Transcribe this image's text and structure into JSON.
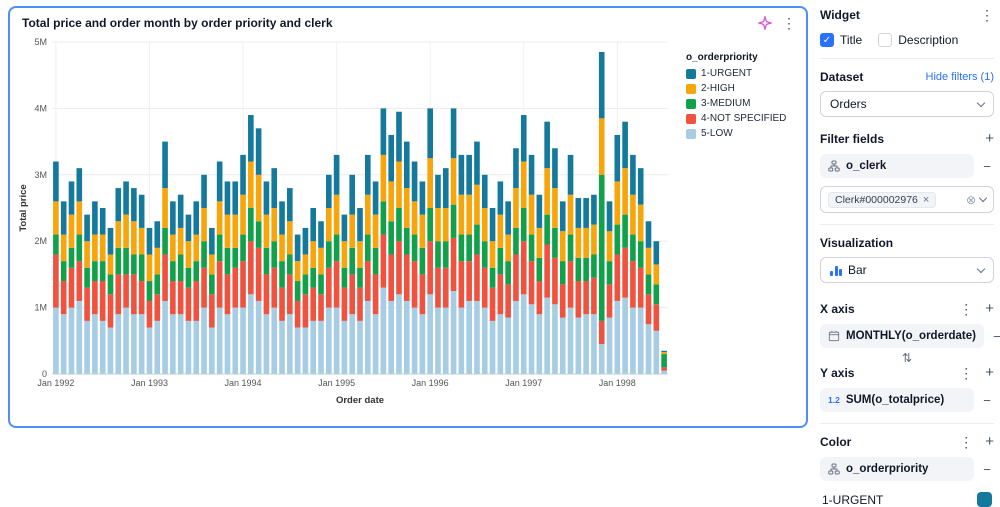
{
  "card": {
    "title": "Total price and order month by order priority and clerk"
  },
  "chart_data": {
    "type": "bar",
    "stacked": true,
    "title": "Total price and order month by order priority and clerk",
    "xlabel": "Order date",
    "ylabel": "Total price",
    "value_unit": "millions",
    "ylim": [
      0,
      5
    ],
    "y_ticks": [
      "0",
      "1M",
      "2M",
      "3M",
      "4M",
      "5M"
    ],
    "x_ticks": [
      "Jan 1992",
      "Jan 1993",
      "Jan 1994",
      "Jan 1995",
      "Jan 1996",
      "Jan 1997",
      "Jan 1998"
    ],
    "legend_title": "o_orderpriority",
    "legend_position": "top-right",
    "grid": true,
    "categories": [
      "1992-01",
      "1992-02",
      "1992-03",
      "1992-04",
      "1992-05",
      "1992-06",
      "1992-07",
      "1992-08",
      "1992-09",
      "1992-10",
      "1992-11",
      "1992-12",
      "1993-01",
      "1993-02",
      "1993-03",
      "1993-04",
      "1993-05",
      "1993-06",
      "1993-07",
      "1993-08",
      "1993-09",
      "1993-10",
      "1993-11",
      "1993-12",
      "1994-01",
      "1994-02",
      "1994-03",
      "1994-04",
      "1994-05",
      "1994-06",
      "1994-07",
      "1994-08",
      "1994-09",
      "1994-10",
      "1994-11",
      "1994-12",
      "1995-01",
      "1995-02",
      "1995-03",
      "1995-04",
      "1995-05",
      "1995-06",
      "1995-07",
      "1995-08",
      "1995-09",
      "1995-10",
      "1995-11",
      "1995-12",
      "1996-01",
      "1996-02",
      "1996-03",
      "1996-04",
      "1996-05",
      "1996-06",
      "1996-07",
      "1996-08",
      "1996-09",
      "1996-10",
      "1996-11",
      "1996-12",
      "1997-01",
      "1997-02",
      "1997-03",
      "1997-04",
      "1997-05",
      "1997-06",
      "1997-07",
      "1997-08",
      "1997-09",
      "1997-10",
      "1997-11",
      "1997-12",
      "1998-01",
      "1998-02",
      "1998-03",
      "1998-04",
      "1998-05",
      "1998-06",
      "1998-07"
    ],
    "series": [
      {
        "name": "1-URGENT",
        "color": "#15799c",
        "values": [
          0.6,
          0.5,
          0.5,
          0.5,
          0.4,
          0.5,
          0.4,
          0.4,
          0.5,
          0.5,
          0.5,
          0.5,
          0.4,
          0.4,
          0.7,
          0.5,
          0.5,
          0.4,
          0.5,
          0.5,
          0.4,
          0.6,
          0.5,
          0.5,
          0.6,
          0.7,
          0.7,
          0.5,
          0.6,
          0.5,
          0.5,
          0.4,
          0.4,
          0.5,
          0.4,
          0.5,
          0.6,
          0.4,
          0.6,
          0.5,
          0.6,
          0.5,
          0.7,
          0.7,
          0.75,
          0.7,
          0.6,
          0.5,
          0.75,
          0.5,
          0.6,
          0.75,
          0.6,
          0.6,
          0.65,
          0.5,
          0.5,
          0.5,
          0.5,
          0.6,
          0.7,
          0.6,
          0.5,
          0.7,
          0.6,
          0.45,
          0.6,
          0.45,
          0.45,
          0.45,
          1.0,
          0.45,
          0.7,
          0.7,
          0.6,
          0.55,
          0.4,
          0.35,
          0.02
        ]
      },
      {
        "name": "2-HIGH",
        "color": "#f6a50b",
        "values": [
          0.5,
          0.4,
          0.5,
          0.5,
          0.4,
          0.4,
          0.4,
          0.3,
          0.4,
          0.5,
          0.5,
          0.4,
          0.4,
          0.4,
          0.6,
          0.4,
          0.4,
          0.4,
          0.4,
          0.5,
          0.3,
          0.5,
          0.5,
          0.5,
          0.6,
          0.7,
          0.7,
          0.5,
          0.5,
          0.4,
          0.5,
          0.3,
          0.3,
          0.4,
          0.4,
          0.5,
          0.6,
          0.4,
          0.5,
          0.4,
          0.6,
          0.5,
          0.7,
          0.6,
          0.7,
          0.6,
          0.5,
          0.5,
          0.75,
          0.5,
          0.5,
          0.7,
          0.6,
          0.6,
          0.6,
          0.5,
          0.4,
          0.5,
          0.4,
          0.6,
          0.7,
          0.6,
          0.45,
          0.7,
          0.6,
          0.45,
          0.6,
          0.45,
          0.45,
          0.45,
          0.85,
          0.45,
          0.65,
          0.7,
          0.6,
          0.55,
          0.4,
          0.3,
          0.03
        ]
      },
      {
        "name": "3-MEDIUM",
        "color": "#12a04b",
        "values": [
          0.3,
          0.3,
          0.3,
          0.4,
          0.3,
          0.3,
          0.3,
          0.3,
          0.4,
          0.4,
          0.3,
          0.4,
          0.3,
          0.3,
          0.4,
          0.3,
          0.4,
          0.3,
          0.3,
          0.4,
          0.3,
          0.4,
          0.4,
          0.3,
          0.4,
          0.5,
          0.4,
          0.4,
          0.4,
          0.4,
          0.3,
          0.3,
          0.3,
          0.3,
          0.3,
          0.4,
          0.4,
          0.3,
          0.4,
          0.3,
          0.4,
          0.4,
          0.5,
          0.5,
          0.5,
          0.4,
          0.4,
          0.4,
          0.5,
          0.4,
          0.4,
          0.5,
          0.4,
          0.4,
          0.45,
          0.4,
          0.3,
          0.4,
          0.35,
          0.4,
          0.5,
          0.4,
          0.35,
          0.45,
          0.45,
          0.35,
          0.4,
          0.35,
          0.35,
          0.35,
          2.2,
          0.35,
          0.45,
          0.5,
          0.4,
          0.4,
          0.3,
          0.3,
          0.2
        ]
      },
      {
        "name": "4-NOT SPECIFIED",
        "color": "#ef5340",
        "values": [
          0.8,
          0.5,
          0.6,
          0.6,
          0.5,
          0.5,
          0.6,
          0.5,
          0.6,
          0.5,
          0.6,
          0.5,
          0.4,
          0.4,
          0.7,
          0.5,
          0.5,
          0.5,
          0.6,
          0.6,
          0.5,
          0.7,
          0.6,
          0.6,
          0.7,
          0.8,
          0.8,
          0.6,
          0.6,
          0.5,
          0.6,
          0.4,
          0.5,
          0.5,
          0.4,
          0.6,
          0.7,
          0.5,
          0.6,
          0.5,
          0.6,
          0.6,
          0.8,
          0.7,
          0.8,
          0.7,
          0.7,
          0.6,
          0.8,
          0.6,
          0.6,
          0.8,
          0.7,
          0.6,
          0.7,
          0.6,
          0.5,
          0.6,
          0.5,
          0.7,
          0.8,
          0.65,
          0.5,
          0.8,
          0.7,
          0.5,
          0.7,
          0.55,
          0.5,
          0.55,
          0.35,
          0.5,
          0.7,
          0.75,
          0.7,
          0.6,
          0.45,
          0.4,
          0.05
        ]
      },
      {
        "name": "5-LOW",
        "color": "#a6cde3",
        "values": [
          1.0,
          0.9,
          1.0,
          1.1,
          0.8,
          0.9,
          0.8,
          0.7,
          0.9,
          1.0,
          0.9,
          0.9,
          0.7,
          0.8,
          1.1,
          0.9,
          0.9,
          0.8,
          0.8,
          1.0,
          0.7,
          1.0,
          0.9,
          1.0,
          1.0,
          1.2,
          1.1,
          0.9,
          1.0,
          0.8,
          0.9,
          0.7,
          0.7,
          0.8,
          0.8,
          1.0,
          1.0,
          0.8,
          0.9,
          0.8,
          1.1,
          0.9,
          1.3,
          1.1,
          1.2,
          1.1,
          1.0,
          0.9,
          1.2,
          1.0,
          1.0,
          1.25,
          1.0,
          1.1,
          1.1,
          1.0,
          0.8,
          0.9,
          0.85,
          1.1,
          1.2,
          1.05,
          0.9,
          1.15,
          1.05,
          0.85,
          1.0,
          0.85,
          0.9,
          0.9,
          0.45,
          0.85,
          1.1,
          1.15,
          1.0,
          1.0,
          0.75,
          0.65,
          0.05
        ]
      }
    ],
    "stack_bottom_to_top": [
      "5-LOW",
      "4-NOT SPECIFIED",
      "3-MEDIUM",
      "2-HIGH",
      "1-URGENT"
    ]
  },
  "sidebar": {
    "header": {
      "title": "Widget"
    },
    "checkboxes": [
      {
        "label": "Title",
        "checked": true
      },
      {
        "label": "Description",
        "checked": false
      }
    ],
    "dataset": {
      "label": "Dataset",
      "link": "Hide filters (1)",
      "selected": "Orders"
    },
    "filter_fields": {
      "label": "Filter fields",
      "field": "o_clerk",
      "chip": "Clerk#000002976"
    },
    "visualization": {
      "label": "Visualization",
      "selected": "Bar"
    },
    "x_axis": {
      "label": "X axis",
      "field": "MONTHLY(o_orderdate)"
    },
    "y_axis": {
      "label": "Y axis",
      "field": "SUM(o_totalprice)"
    },
    "color": {
      "label": "Color",
      "field": "o_orderpriority",
      "first_value": "1-URGENT",
      "swatch": "#15799c"
    }
  },
  "icons": {
    "kebab": "⋮",
    "plus": "+",
    "minus": "−",
    "close": "×",
    "clear": "⊗",
    "swap": "⇅",
    "check": "✓",
    "numeric_type": "1.2"
  },
  "colors": {
    "accent": "#2970ff",
    "card_border": "#4e8ef7"
  }
}
